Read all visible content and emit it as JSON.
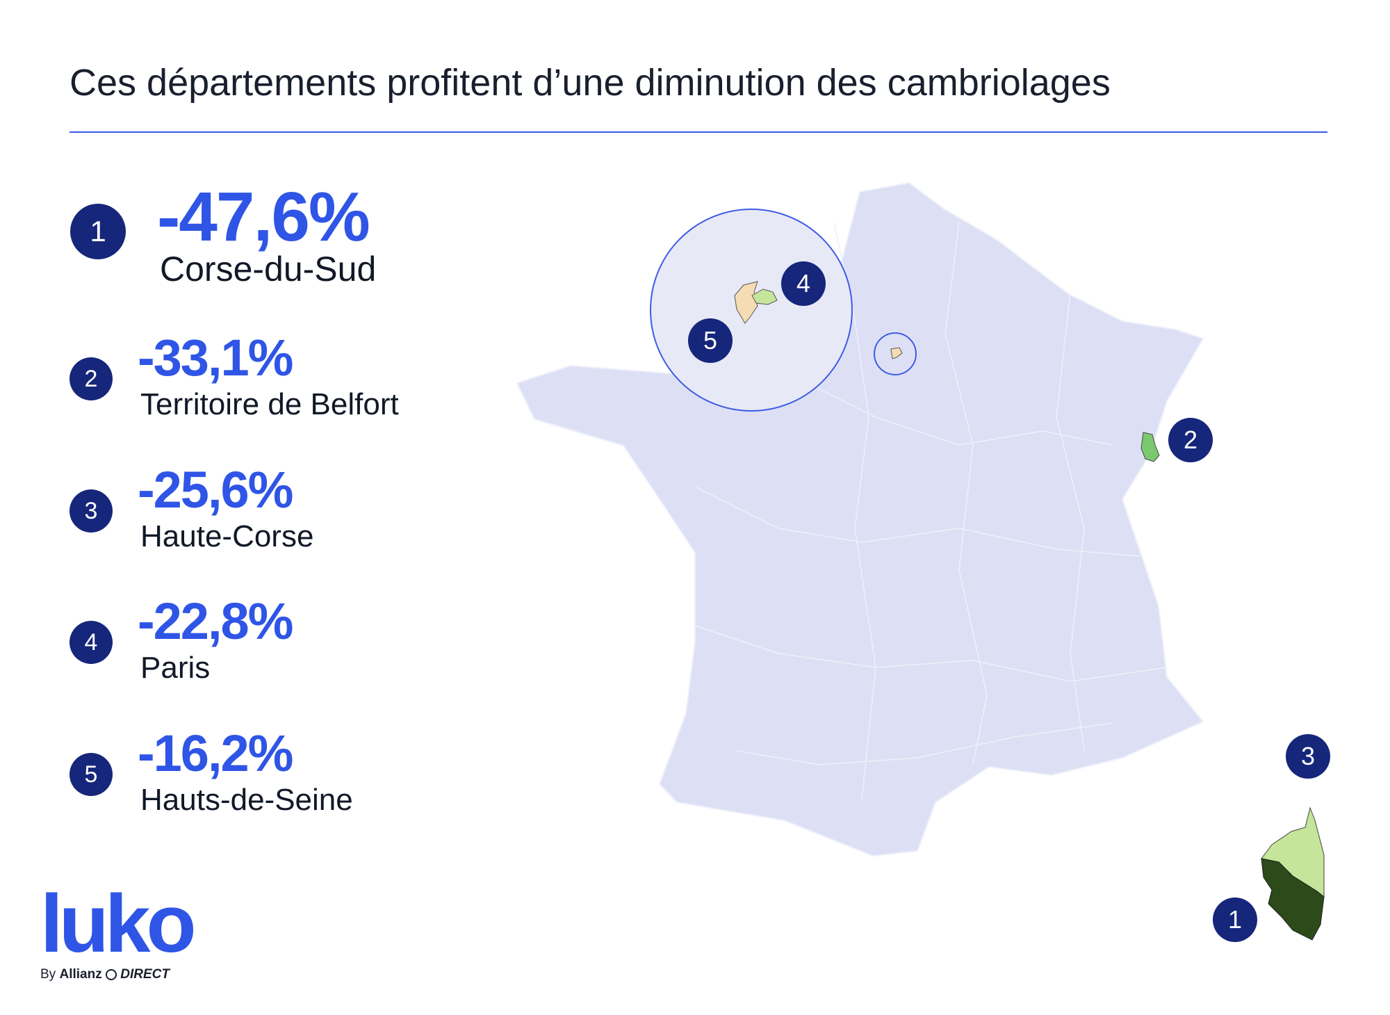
{
  "title": "Ces départements profitent d’une diminution des cambriolages",
  "colors": {
    "accent": "#2f55e6",
    "badge": "#16267a",
    "map_fill": "#dde0f4",
    "highlight_light": "#c5e59a",
    "highlight_dark": "#2d4a1a",
    "highlight_tan": "#f5dcb5"
  },
  "ranking": [
    {
      "rank": "1",
      "value": "-47,6%",
      "department": "Corse-du-Sud"
    },
    {
      "rank": "2",
      "value": "-33,1%",
      "department": "Territoire de Belfort"
    },
    {
      "rank": "3",
      "value": "-25,6%",
      "department": "Haute-Corse"
    },
    {
      "rank": "4",
      "value": "-22,8%",
      "department": "Paris"
    },
    {
      "rank": "5",
      "value": "-16,2%",
      "department": "Hauts-de-Seine"
    }
  ],
  "logo": {
    "name": "luko",
    "byline_prefix": "By",
    "byline_brand": "Allianz",
    "byline_suffix": "DIRECT"
  }
}
